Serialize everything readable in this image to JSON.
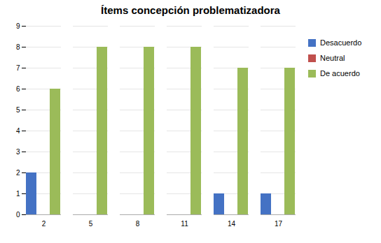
{
  "chart_data": {
    "type": "bar",
    "title": "Ítems concepción problematizadora",
    "categories": [
      2,
      5,
      8,
      11,
      14,
      17
    ],
    "series": [
      {
        "name": "Desacuerdo",
        "color": "#4472C4",
        "values": [
          2,
          0,
          0,
          0,
          1,
          1
        ]
      },
      {
        "name": "Neutral",
        "color": "#C0504D",
        "values": [
          0,
          0,
          0,
          0,
          0,
          0
        ]
      },
      {
        "name": "De acuerdo",
        "color": "#9BBB59",
        "values": [
          6,
          8,
          8,
          8,
          7,
          7
        ]
      }
    ],
    "ylim": [
      0,
      9
    ],
    "yticks": [
      0,
      1,
      2,
      3,
      4,
      5,
      6,
      7,
      8,
      9
    ],
    "grid": true,
    "legend": "right"
  }
}
